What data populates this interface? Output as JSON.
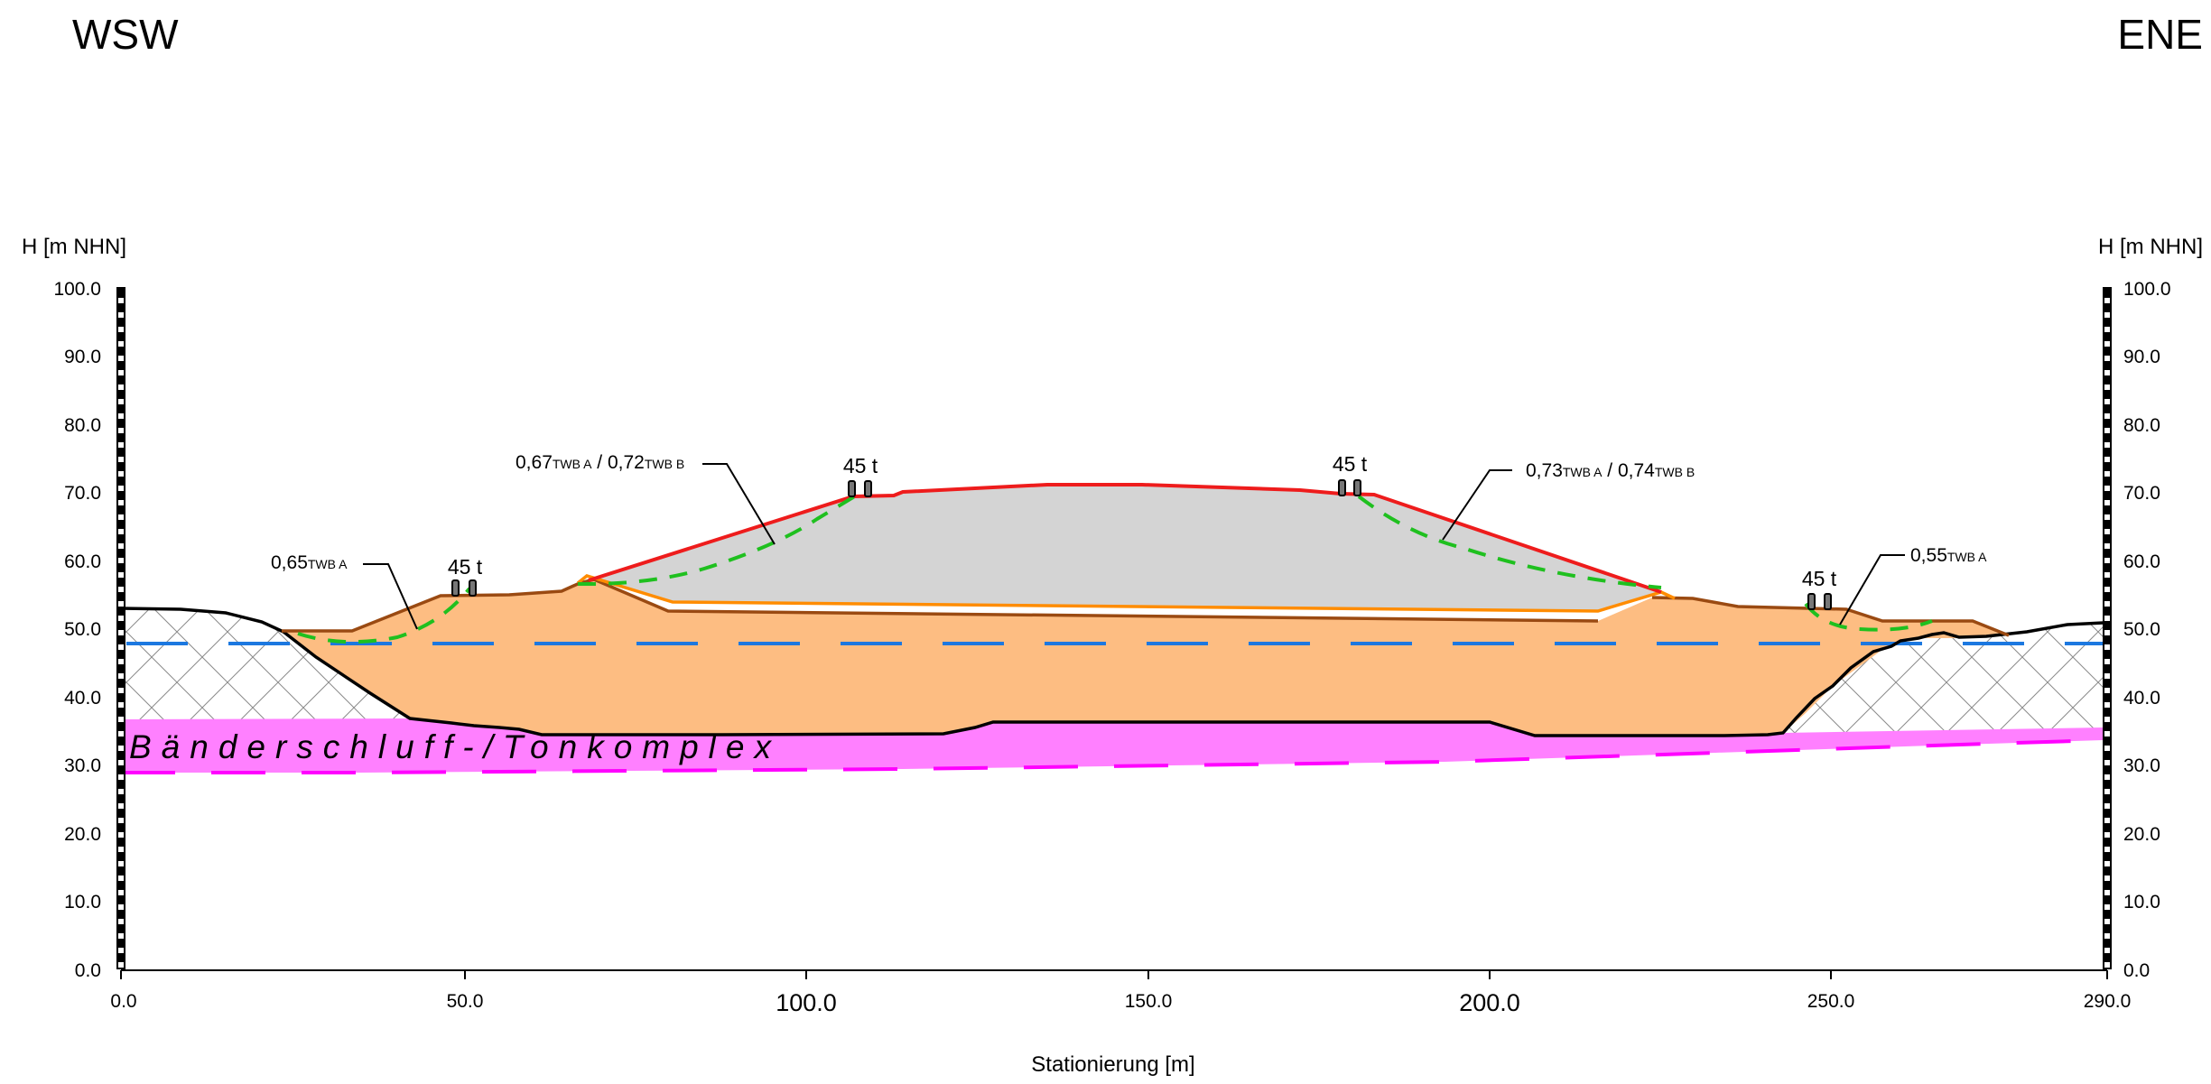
{
  "header": {
    "left_direction": "WSW",
    "right_direction": "ENE"
  },
  "axes": {
    "y_title_left": "H [m NHN]",
    "y_title_right": "H [m NHN]",
    "x_title": "Stationierung [m]",
    "y_ticks": [
      "100.0",
      "90.0",
      "80.0",
      "70.0",
      "60.0",
      "50.0",
      "40.0",
      "30.0",
      "20.0",
      "10.0",
      "0.0"
    ],
    "x_ticks": [
      "0.0",
      "50.0",
      "100.0",
      "150.0",
      "200.0",
      "250.0",
      "290.0"
    ],
    "x_range": [
      0,
      290
    ],
    "y_range": [
      0,
      100
    ]
  },
  "annotations": {
    "fos_left_inner": "0,65",
    "fos_left_inner_sub": "TWB A",
    "fos_left_outer_a": "0,67",
    "fos_left_outer_sub_a": "TWB A",
    "fos_left_outer_sep": " / ",
    "fos_left_outer_b": "0,72",
    "fos_left_outer_sub_b": "TWB B",
    "fos_right_outer_a": "0,73",
    "fos_right_outer_sub_a": "TWB A",
    "fos_right_outer_sep": " / ",
    "fos_right_outer_b": "0,74",
    "fos_right_outer_sub_b": "TWB B",
    "fos_right_inner": "0,55",
    "fos_right_inner_sub": "TWB A"
  },
  "loads": [
    "45 t",
    "45 t",
    "45 t",
    "45 t"
  ],
  "strata": {
    "clay_label": "Bänderschluff-/Tonkomplex"
  },
  "colors": {
    "fill_orange": "#fdbd82",
    "dump_gray": "#d4d4d4",
    "clay_pink": "#ff80ff",
    "slip_red": "#ee1c1c",
    "slip_green": "#1fc01f",
    "water_blue": "#1c78e0",
    "contour_brown": "#9a4a12",
    "contour_orange": "#ff8c00",
    "clay_dash_magenta": "#ff00ff"
  }
}
